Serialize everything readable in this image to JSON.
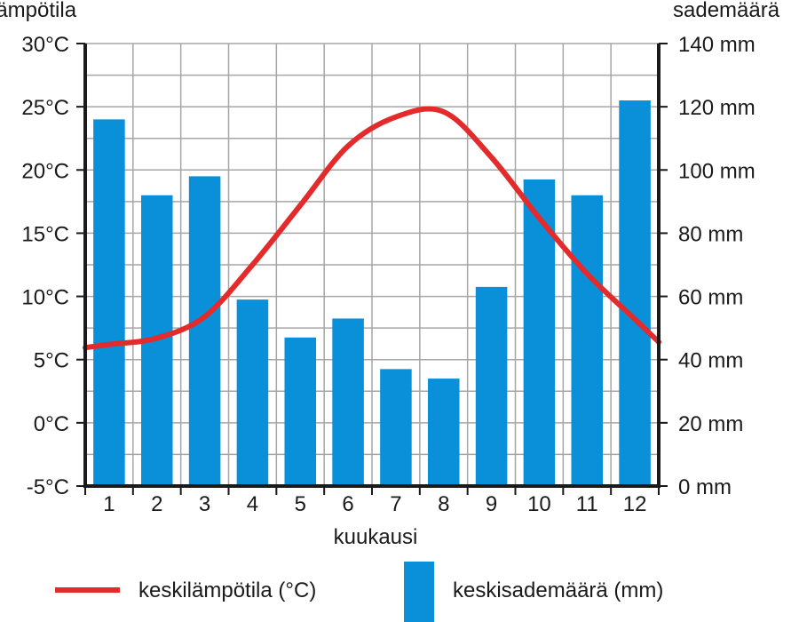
{
  "chart_data": {
    "type": "bar",
    "categories": [
      "1",
      "2",
      "3",
      "4",
      "5",
      "6",
      "7",
      "8",
      "9",
      "10",
      "11",
      "12"
    ],
    "xlabel": "kuukausi",
    "y_left_label": "lämpötila",
    "y_right_label": "sademäärä",
    "y_left_ticks": [
      "-5°C",
      "0°C",
      "5°C",
      "10°C",
      "15°C",
      "20°C",
      "25°C",
      "30°C"
    ],
    "y_right_ticks": [
      "0 mm",
      "20 mm",
      "40 mm",
      "60 mm",
      "80 mm",
      "100 mm",
      "120 mm",
      "140 mm"
    ],
    "y_left_range": [
      -5,
      30
    ],
    "y_right_range": [
      0,
      140
    ],
    "grid": true,
    "legend_position": "bottom",
    "series": [
      {
        "name": "keskilämpötila (°C)",
        "type": "line",
        "axis": "left",
        "color": "#e32b2b",
        "values": [
          6.2,
          6.7,
          8.4,
          12.5,
          17.2,
          21.9,
          24.2,
          24.6,
          21.0,
          16.2,
          11.8,
          8.2
        ]
      },
      {
        "name": "keskisademäärä (mm)",
        "type": "bar",
        "axis": "right",
        "color": "#0a8fd9",
        "values": [
          116,
          92,
          98,
          59,
          47,
          53,
          37,
          34,
          63,
          97,
          92,
          122
        ]
      }
    ]
  }
}
